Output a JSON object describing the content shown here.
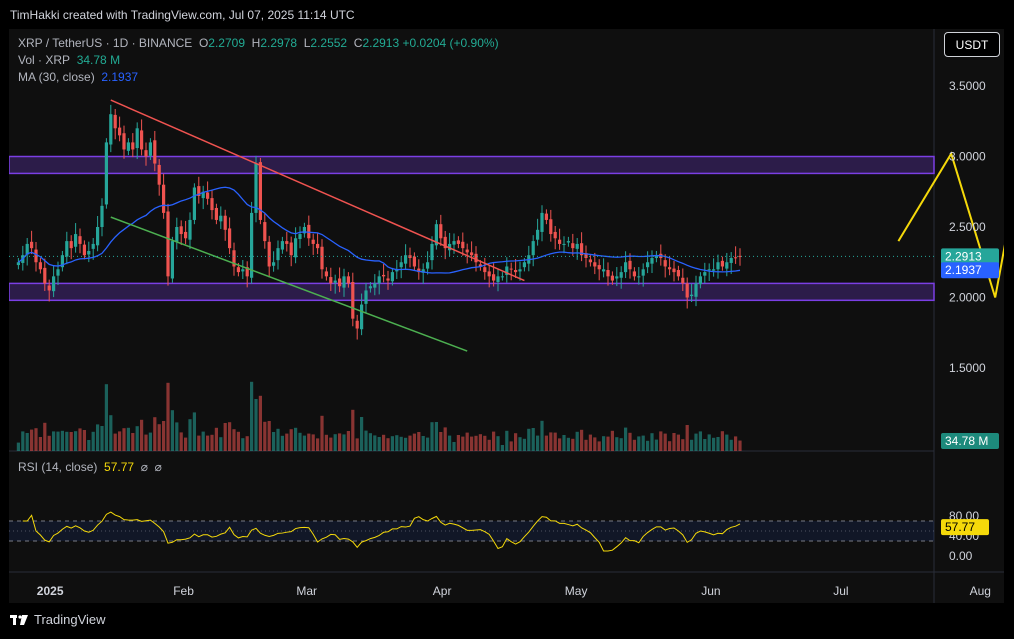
{
  "header": {
    "credit": "TimHakki created with TradingView.com, Jul 07, 2025 11:14 UTC"
  },
  "legend": {
    "symbol": "XRP / TetherUS · 1D · BINANCE",
    "open_label": "O",
    "open": "2.2709",
    "high_label": "H",
    "high": "2.2978",
    "low_label": "L",
    "low": "2.2552",
    "close_label": "C",
    "close": "2.2913",
    "change": "+0.0204 (+0.90%)",
    "vol_label": "Vol · XRP",
    "vol": "34.78 M",
    "ma_label": "MA (30, close)",
    "ma": "2.1937"
  },
  "currency_button": "USDT",
  "price_axis": {
    "ticks": [
      "3.5000",
      "3.0000",
      "2.5000",
      "2.0000",
      "1.5000"
    ],
    "values": [
      3.5,
      3.0,
      2.5,
      2.0,
      1.5
    ]
  },
  "price_badges": {
    "last": "2.2913",
    "ma": "2.1937",
    "volume": "34.78 M",
    "rsi": "57.77"
  },
  "rsi": {
    "label": "RSI (14, close)",
    "value": "57.77",
    "icons": [
      "⌀",
      "⌀"
    ],
    "ticks": [
      "80.00",
      "40.00",
      "0.00"
    ],
    "tick_values": [
      80,
      40,
      0
    ],
    "upper": 70,
    "lower": 30
  },
  "time_axis": {
    "labels": [
      "2025",
      "Feb",
      "Mar",
      "Apr",
      "May",
      "Jun",
      "Jul",
      "Aug"
    ]
  },
  "footer": {
    "brand": "TradingView"
  },
  "colors": {
    "up": "#26a69a",
    "down": "#ef5350",
    "ma": "#2962ff",
    "zone": "#7b3fe4",
    "projection": "#f5d90a",
    "resistance_line": "#ef5350",
    "support_line": "#4caf50",
    "rsi": "#f5d90a"
  },
  "chart_data": {
    "type": "candlestick",
    "symbol": "XRP/USDT",
    "timeframe": "1D",
    "period": [
      "2024-12-25",
      "2025-07-07"
    ],
    "ylim": [
      1.25,
      3.75
    ],
    "closes": [
      2.25,
      2.3,
      2.38,
      2.35,
      2.25,
      2.2,
      2.1,
      2.05,
      2.15,
      2.2,
      2.3,
      2.4,
      2.35,
      2.45,
      2.38,
      2.3,
      2.33,
      2.38,
      2.5,
      2.65,
      3.1,
      3.3,
      3.2,
      3.15,
      3.05,
      3.1,
      3.05,
      3.2,
      3.05,
      3.0,
      3.1,
      2.95,
      2.8,
      2.6,
      2.15,
      2.4,
      2.5,
      2.45,
      2.42,
      2.55,
      2.78,
      2.72,
      2.75,
      2.7,
      2.62,
      2.55,
      2.58,
      2.48,
      2.35,
      2.22,
      2.18,
      2.2,
      2.15,
      2.6,
      2.95,
      2.55,
      2.4,
      2.22,
      2.25,
      2.35,
      2.4,
      2.38,
      2.3,
      2.42,
      2.45,
      2.5,
      2.42,
      2.38,
      2.35,
      2.2,
      2.15,
      2.1,
      2.12,
      2.08,
      2.15,
      2.1,
      1.85,
      1.78,
      1.95,
      2.05,
      2.08,
      2.1,
      2.15,
      2.15,
      2.12,
      2.18,
      2.2,
      2.25,
      2.3,
      2.28,
      2.22,
      2.18,
      2.2,
      2.25,
      2.38,
      2.52,
      2.42,
      2.35,
      2.38,
      2.4,
      2.38,
      2.35,
      2.32,
      2.3,
      2.25,
      2.22,
      2.18,
      2.15,
      2.12,
      2.15,
      2.15,
      2.22,
      2.2,
      2.18,
      2.2,
      2.25,
      2.3,
      2.4,
      2.48,
      2.6,
      2.55,
      2.45,
      2.42,
      2.38,
      2.38,
      2.4,
      2.35,
      2.38,
      2.3,
      2.28,
      2.25,
      2.22,
      2.2,
      2.2,
      2.15,
      2.12,
      2.15,
      2.18,
      2.25,
      2.2,
      2.15,
      2.15,
      2.2,
      2.25,
      2.28,
      2.3,
      2.28,
      2.22,
      2.2,
      2.18,
      2.15,
      2.1,
      2.0,
      2.02,
      2.1,
      2.15,
      2.18,
      2.2,
      2.2,
      2.25,
      2.22,
      2.25,
      2.28,
      2.28,
      2.2913
    ],
    "annotations": {
      "resistance_zone": [
        2.88,
        3.0
      ],
      "support_zone": [
        1.98,
        2.1
      ],
      "descending_resistance": [
        {
          "date": "2025-01-16",
          "price": 3.4
        },
        {
          "date": "2025-04-20",
          "price": 2.12
        }
      ],
      "descending_support": [
        {
          "date": "2025-01-16",
          "price": 2.57
        },
        {
          "date": "2025-04-07",
          "price": 1.62
        }
      ],
      "projection_path": [
        {
          "date": "2025-07-14",
          "price": 2.4
        },
        {
          "date": "2025-07-26",
          "price": 3.02
        },
        {
          "date": "2025-08-05",
          "price": 2.0
        },
        {
          "date": "2025-08-14",
          "price": 3.52
        }
      ]
    }
  }
}
